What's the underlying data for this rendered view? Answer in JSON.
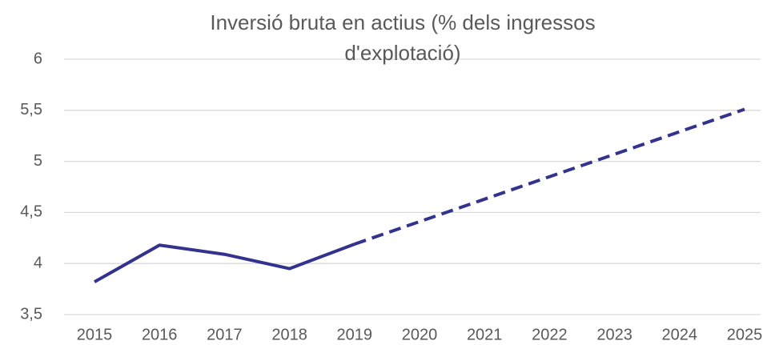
{
  "chart_data": {
    "type": "line",
    "title": "Inversió bruta en actius (% dels ingressos d'explotació)",
    "categories": [
      "2015",
      "2016",
      "2017",
      "2018",
      "2019",
      "2020",
      "2021",
      "2022",
      "2023",
      "2024",
      "2025"
    ],
    "series": [
      {
        "color": "#33338f",
        "dashed": false,
        "values": [
          3.82,
          4.18,
          4.09,
          3.95,
          4.19,
          null,
          null,
          null,
          null,
          null,
          null
        ]
      },
      {
        "color": "#33338f",
        "dashed": true,
        "values": [
          null,
          null,
          null,
          null,
          4.19,
          4.41,
          4.63,
          4.85,
          5.07,
          5.29,
          5.51
        ]
      }
    ],
    "ylim": [
      3.5,
      6
    ],
    "yticks": [
      {
        "value": 3.5,
        "label": "3,5"
      },
      4,
      {
        "value": 4.5,
        "label": "4,5"
      },
      5,
      {
        "value": 5.5,
        "label": "5,5"
      },
      6
    ],
    "grid": true
  }
}
